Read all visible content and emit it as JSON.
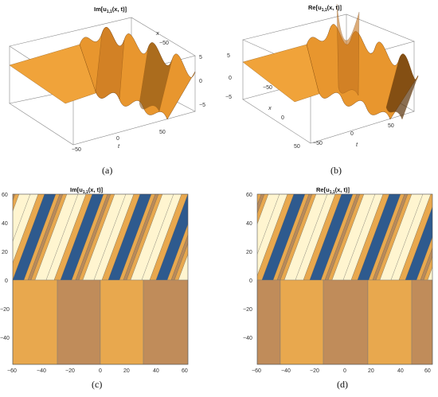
{
  "figure": {
    "panels": [
      {
        "caption": "(a)",
        "title_prefix": "Im[",
        "title_var": "u",
        "title_sub": "1,1",
        "title_suffix": "(x, t)]",
        "axis_x_label": "x",
        "axis_t_label": "t",
        "z_ticks": [
          "5",
          "0",
          "−5"
        ],
        "x_ticks": [
          "−50",
          "0",
          "50"
        ],
        "t_ticks": [
          "−50",
          "0",
          "50"
        ]
      },
      {
        "caption": "(b)",
        "title_prefix": "Re[",
        "title_var": "u",
        "title_sub": "1,1",
        "title_suffix": "(x, t)]",
        "axis_x_label": "x",
        "axis_t_label": "t",
        "z_ticks": [
          "5",
          "0",
          "−5"
        ],
        "x_ticks": [
          "−50",
          "0",
          "50"
        ],
        "t_ticks": [
          "−50",
          "0",
          "50"
        ]
      },
      {
        "caption": "(c)",
        "title_prefix": "Im[",
        "title_var": "u",
        "title_sub": "1,1",
        "title_suffix": "(x, t)]",
        "y_ticks": [
          "60",
          "40",
          "20",
          "0",
          "−20",
          "−40"
        ],
        "x_ticks": [
          "−60",
          "−40",
          "−20",
          "0",
          "20",
          "40",
          "60"
        ]
      },
      {
        "caption": "(d)",
        "title_prefix": "Re[",
        "title_var": "u",
        "title_sub": "1,1",
        "title_suffix": "(x, t)]",
        "y_ticks": [
          "60",
          "40",
          "20",
          "0",
          "−20",
          "−40"
        ],
        "x_ticks": [
          "−60",
          "−40",
          "−20",
          "0",
          "20",
          "40",
          "60"
        ]
      }
    ]
  },
  "colors": {
    "surface_light": "#f0a33a",
    "surface_dark": "#7a4a10",
    "contour_blue": "#2e5a8e",
    "contour_cream": "#fff5d0",
    "contour_orange": "#e8a84e",
    "contour_brown": "#b98a5a"
  }
}
